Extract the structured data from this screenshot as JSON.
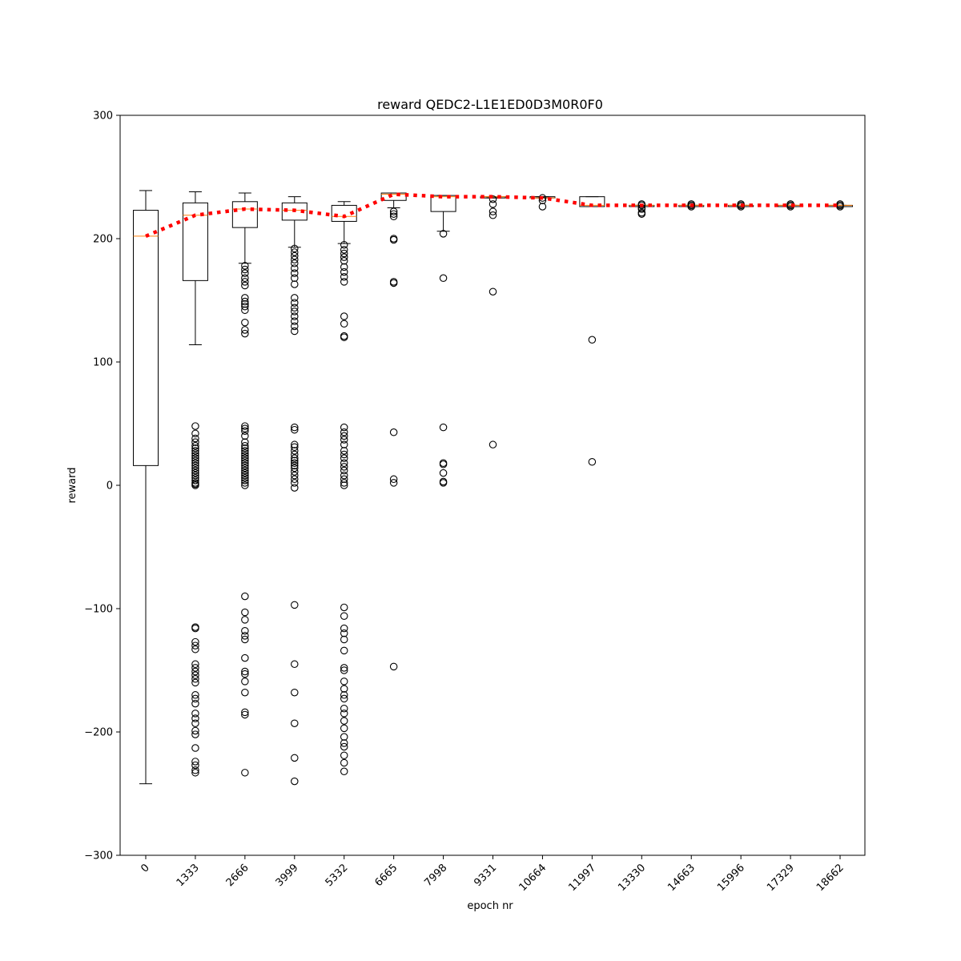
{
  "chart_data": {
    "type": "box",
    "title": "reward QEDC2-L1E1ED0D3M0R0F0",
    "xlabel": "epoch nr",
    "ylabel": "reward",
    "ylim": [
      -300,
      300
    ],
    "yticks": [
      -300,
      -200,
      -100,
      0,
      100,
      200,
      300
    ],
    "grid": false,
    "categories": [
      "0",
      "1333",
      "2666",
      "3999",
      "5332",
      "6665",
      "7998",
      "9331",
      "10664",
      "11997",
      "13330",
      "14663",
      "15996",
      "17329",
      "18662"
    ],
    "boxes": [
      {
        "q1": 16,
        "median": 202,
        "q3": 223,
        "whisker_low": -242,
        "whisker_high": 239,
        "outliers": []
      },
      {
        "q1": 166,
        "median": 219,
        "q3": 229,
        "whisker_low": 114,
        "whisker_high": 238,
        "outliers": [
          48,
          42,
          38,
          35,
          32,
          30,
          28,
          26,
          24,
          22,
          20,
          18,
          16,
          14,
          12,
          10,
          8,
          6,
          4,
          2,
          1,
          0,
          -115,
          -116,
          -127,
          -130,
          -133,
          -145,
          -148,
          -151,
          -154,
          -157,
          -160,
          -170,
          -173,
          -177,
          -185,
          -189,
          -193,
          -199,
          -202,
          -213,
          -224,
          -227,
          -231,
          -233
        ]
      },
      {
        "q1": 209,
        "median": 224,
        "q3": 230,
        "whisker_low": 180,
        "whisker_high": 237,
        "outliers": [
          178,
          175,
          172,
          168,
          165,
          162,
          152,
          149,
          147,
          145,
          142,
          132,
          126,
          123,
          48,
          46,
          44,
          40,
          35,
          32,
          30,
          28,
          26,
          24,
          22,
          20,
          18,
          16,
          14,
          12,
          10,
          8,
          6,
          4,
          2,
          0,
          -90,
          -103,
          -109,
          -118,
          -122,
          -125,
          -140,
          -151,
          -153,
          -159,
          -168,
          -184,
          -186,
          -233
        ]
      },
      {
        "q1": 215,
        "median": 223,
        "q3": 229,
        "whisker_low": 193,
        "whisker_high": 234,
        "outliers": [
          192,
          189,
          186,
          183,
          180,
          176,
          172,
          168,
          163,
          152,
          148,
          144,
          141,
          137,
          133,
          129,
          125,
          47,
          45,
          33,
          31,
          28,
          25,
          22,
          20,
          18,
          16,
          14,
          11,
          8,
          5,
          2,
          -2,
          -97,
          -145,
          -168,
          -193,
          -221,
          -240
        ]
      },
      {
        "q1": 214,
        "median": 218,
        "q3": 227,
        "whisker_low": 196,
        "whisker_high": 230,
        "outliers": [
          195,
          191,
          188,
          185,
          182,
          177,
          173,
          169,
          165,
          137,
          131,
          121,
          120,
          47,
          43,
          40,
          37,
          33,
          28,
          25,
          22,
          18,
          15,
          12,
          8,
          5,
          2,
          0,
          -99,
          -106,
          -116,
          -120,
          -125,
          -134,
          -148,
          -150,
          -159,
          -165,
          -170,
          -173,
          -181,
          -185,
          -191,
          -197,
          -204,
          -209,
          -212,
          -219,
          -225,
          -232
        ]
      },
      {
        "q1": 231,
        "median": 236,
        "q3": 237,
        "whisker_low": 225,
        "whisker_high": 237,
        "outliers": [
          222,
          220,
          218,
          200,
          199,
          165,
          164,
          43,
          5,
          2,
          -147
        ]
      },
      {
        "q1": 222,
        "median": 234,
        "q3": 235,
        "whisker_low": 206,
        "whisker_high": 235,
        "outliers": [
          204,
          168,
          47,
          18,
          17,
          10,
          3,
          2
        ]
      },
      {
        "q1": 233,
        "median": 234,
        "q3": 234,
        "whisker_low": 233,
        "whisker_high": 234,
        "outliers": [
          232,
          228,
          222,
          219,
          157,
          33
        ]
      },
      {
        "q1": 233,
        "median": 233,
        "q3": 234,
        "whisker_low": 233,
        "whisker_high": 234,
        "outliers": [
          233,
          231,
          226
        ]
      },
      {
        "q1": 226,
        "median": 227,
        "q3": 234,
        "whisker_low": 226,
        "whisker_high": 234,
        "outliers": [
          118,
          19
        ]
      },
      {
        "q1": 226,
        "median": 227,
        "q3": 227,
        "whisker_low": 226,
        "whisker_high": 227,
        "outliers": [
          228,
          227,
          225,
          224,
          221,
          220
        ]
      },
      {
        "q1": 226,
        "median": 227,
        "q3": 227,
        "whisker_low": 226,
        "whisker_high": 227,
        "outliers": [
          228,
          227,
          226
        ]
      },
      {
        "q1": 226,
        "median": 227,
        "q3": 227,
        "whisker_low": 226,
        "whisker_high": 227,
        "outliers": [
          228,
          227,
          226
        ]
      },
      {
        "q1": 226,
        "median": 227,
        "q3": 227,
        "whisker_low": 226,
        "whisker_high": 227,
        "outliers": [
          228,
          227,
          226
        ]
      },
      {
        "q1": 226,
        "median": 227,
        "q3": 227,
        "whisker_low": 226,
        "whisker_high": 227,
        "outliers": [
          228,
          227,
          226
        ]
      }
    ],
    "mean_line": {
      "values": [
        202,
        219,
        224,
        223,
        218,
        236,
        234,
        234,
        233,
        227,
        227,
        227,
        227,
        227,
        227
      ],
      "color": "#ff0000",
      "style": "dotted"
    },
    "colors": {
      "box": "#000000",
      "median": "#ff7f0e",
      "mean": "#ff0000"
    }
  }
}
